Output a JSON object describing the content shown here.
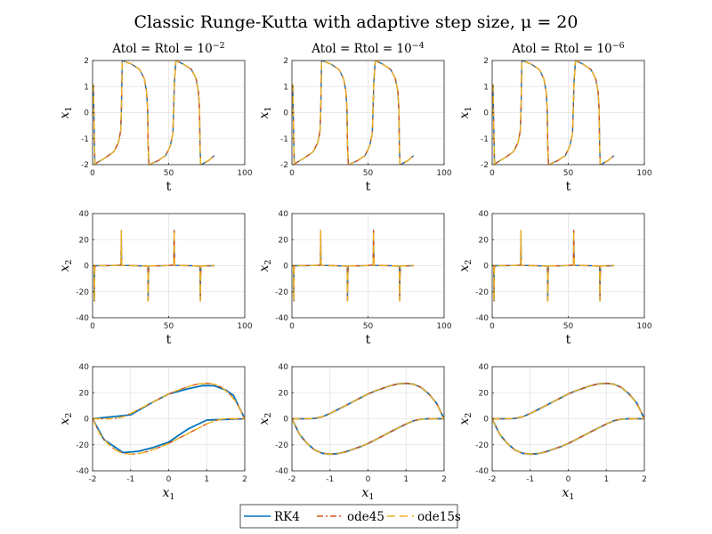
{
  "figure": {
    "title": "Classic Runge-Kutta with adaptive step size, μ = 20",
    "legend": {
      "placement": "bottom-center",
      "entries": [
        {
          "label": "RK4",
          "color": "#0072BD",
          "style": "solid"
        },
        {
          "label": "ode45",
          "color": "#D95319",
          "style": "dash-dot"
        },
        {
          "label": "ode15s",
          "color": "#EDB120",
          "style": "dashed"
        }
      ]
    }
  },
  "chart_data": [
    {
      "type": "line",
      "row": 0,
      "col": 0,
      "title": "Atol = Rtol = 10",
      "title_exp": "−2",
      "xlabel": "t",
      "ylabel": "x",
      "ylabel_sub": "1",
      "xlim": [
        0,
        100
      ],
      "ylim": [
        -2,
        2
      ],
      "xticks": [
        0,
        50,
        100
      ],
      "yticks": [
        -2,
        -1,
        0,
        1,
        2
      ],
      "grid": true,
      "series_names": [
        "RK4",
        "ode45",
        "ode15s"
      ]
    },
    {
      "type": "line",
      "row": 0,
      "col": 1,
      "title": "Atol = Rtol = 10",
      "title_exp": "−4",
      "xlabel": "t",
      "ylabel": "x",
      "ylabel_sub": "1",
      "xlim": [
        0,
        100
      ],
      "ylim": [
        -2,
        2
      ],
      "xticks": [
        0,
        50,
        100
      ],
      "yticks": [
        -2,
        -1,
        0,
        1,
        2
      ],
      "grid": true,
      "series_names": [
        "RK4",
        "ode45",
        "ode15s"
      ]
    },
    {
      "type": "line",
      "row": 0,
      "col": 2,
      "title": "Atol = Rtol = 10",
      "title_exp": "−6",
      "xlabel": "t",
      "ylabel": "x",
      "ylabel_sub": "1",
      "xlim": [
        0,
        100
      ],
      "ylim": [
        -2,
        2
      ],
      "xticks": [
        0,
        50,
        100
      ],
      "yticks": [
        -2,
        -1,
        0,
        1,
        2
      ],
      "grid": true,
      "series_names": [
        "RK4",
        "ode45",
        "ode15s"
      ]
    },
    {
      "type": "line",
      "row": 1,
      "col": 0,
      "title": "",
      "xlabel": "t",
      "ylabel": "x",
      "ylabel_sub": "2",
      "xlim": [
        0,
        100
      ],
      "ylim": [
        -40,
        40
      ],
      "xticks": [
        0,
        50,
        100
      ],
      "yticks": [
        -40,
        -20,
        0,
        20,
        40
      ],
      "grid": true,
      "series_names": [
        "RK4",
        "ode45",
        "ode15s"
      ]
    },
    {
      "type": "line",
      "row": 1,
      "col": 1,
      "title": "",
      "xlabel": "t",
      "ylabel": "x",
      "ylabel_sub": "2",
      "xlim": [
        0,
        100
      ],
      "ylim": [
        -40,
        40
      ],
      "xticks": [
        0,
        50,
        100
      ],
      "yticks": [
        -40,
        -20,
        0,
        20,
        40
      ],
      "grid": true,
      "series_names": [
        "RK4",
        "ode45",
        "ode15s"
      ]
    },
    {
      "type": "line",
      "row": 1,
      "col": 2,
      "title": "",
      "xlabel": "t",
      "ylabel": "x",
      "ylabel_sub": "2",
      "xlim": [
        0,
        100
      ],
      "ylim": [
        -40,
        40
      ],
      "xticks": [
        0,
        50,
        100
      ],
      "yticks": [
        -40,
        -20,
        0,
        20,
        40
      ],
      "grid": true,
      "series_names": [
        "RK4",
        "ode45",
        "ode15s"
      ]
    },
    {
      "type": "line",
      "row": 2,
      "col": 0,
      "title": "",
      "xlabel": "x",
      "xlabel_sub": "1",
      "ylabel": "x",
      "ylabel_sub": "2",
      "xlim": [
        -2,
        2
      ],
      "ylim": [
        -40,
        40
      ],
      "xticks": [
        -2,
        -1,
        0,
        1,
        2
      ],
      "yticks": [
        -40,
        -20,
        0,
        20,
        40
      ],
      "grid": true,
      "series_names": [
        "RK4",
        "ode45",
        "ode15s"
      ]
    },
    {
      "type": "line",
      "row": 2,
      "col": 1,
      "title": "",
      "xlabel": "x",
      "xlabel_sub": "1",
      "ylabel": "x",
      "ylabel_sub": "2",
      "xlim": [
        -2,
        2
      ],
      "ylim": [
        -40,
        40
      ],
      "xticks": [
        -2,
        -1,
        0,
        1,
        2
      ],
      "yticks": [
        -40,
        -20,
        0,
        20,
        40
      ],
      "grid": true,
      "series_names": [
        "RK4",
        "ode45",
        "ode15s"
      ]
    },
    {
      "type": "line",
      "row": 2,
      "col": 2,
      "title": "",
      "xlabel": "x",
      "xlabel_sub": "1",
      "ylabel": "x",
      "ylabel_sub": "2",
      "xlim": [
        -2,
        2
      ],
      "ylim": [
        -40,
        40
      ],
      "xticks": [
        -2,
        -1,
        0,
        1,
        2
      ],
      "yticks": [
        -40,
        -20,
        0,
        20,
        40
      ],
      "grid": true,
      "series_names": [
        "RK4",
        "ode45",
        "ode15s"
      ]
    }
  ],
  "series_data": {
    "time_x1": {
      "t": [
        0,
        0.5,
        1.5,
        3,
        8,
        14,
        17,
        18.5,
        19,
        19.5,
        20.5,
        26,
        31,
        34,
        35.5,
        36.2,
        36.5,
        37,
        38,
        43,
        48,
        51,
        52.8,
        53.3,
        53.8,
        54.8,
        60,
        65,
        68,
        69.6,
        70.3,
        70.6,
        71,
        72,
        76,
        80
      ],
      "x1": [
        1.1,
        1.05,
        -2,
        -1.92,
        -1.75,
        -1.5,
        -1.15,
        -0.7,
        0.2,
        2,
        1.98,
        1.85,
        1.65,
        1.3,
        0.8,
        0.1,
        -1.2,
        -2,
        -1.98,
        -1.85,
        -1.65,
        -1.3,
        -0.8,
        0.1,
        1.2,
        2,
        1.85,
        1.65,
        1.3,
        0.8,
        0.1,
        -1.2,
        -2,
        -1.98,
        -1.85,
        -1.65
      ]
    },
    "time_x2": {
      "t": [
        0,
        1.0,
        1.2,
        1.4,
        1.8,
        10,
        18.7,
        18.9,
        19.0,
        19.2,
        19.5,
        30,
        36.3,
        36.5,
        36.7,
        36.9,
        37.2,
        48,
        53.4,
        53.6,
        53.8,
        54.0,
        54.3,
        65,
        70.6,
        70.8,
        71.0,
        71.2,
        71.5,
        80
      ],
      "x2": [
        0,
        0,
        -27,
        -2,
        0,
        0.1,
        0.4,
        27,
        10,
        1,
        0.2,
        -0.1,
        -0.4,
        -27,
        -10,
        -1,
        -0.2,
        0.1,
        0.4,
        27,
        10,
        1,
        0.2,
        -0.1,
        -0.4,
        -27,
        -10,
        -1,
        -0.2,
        0
      ]
    },
    "phase_smooth": {
      "x1": [
        -2,
        -1.8,
        -1.6,
        -1.4,
        -1.2,
        -1.0,
        -0.8,
        -0.6,
        -0.4,
        -0.2,
        0,
        0.2,
        0.4,
        0.6,
        0.8,
        1.0,
        1.2,
        1.4,
        1.6,
        1.8,
        2.0
      ],
      "x2_upper": [
        0,
        0,
        0,
        0.3,
        1.5,
        4,
        7,
        10,
        13,
        16,
        19,
        21.5,
        23.5,
        25.5,
        26.8,
        27.2,
        26.5,
        24,
        19,
        12,
        0
      ],
      "x2_lower": [
        0,
        -12,
        -19,
        -24,
        -26.5,
        -27.2,
        -26.8,
        -25.5,
        -23.5,
        -21.5,
        -19,
        -16,
        -13,
        -10,
        -7,
        -4,
        -1.5,
        -0.3,
        0,
        0,
        0
      ]
    },
    "phase_rk4_coarse": {
      "x1_upper": [
        -2,
        -1.0,
        -0.4,
        0,
        0.5,
        0.9,
        1.2,
        1.5,
        1.7,
        2.0
      ],
      "x2_upper": [
        0,
        3,
        13,
        19,
        23,
        25.5,
        25.3,
        22,
        18,
        0
      ],
      "x1_lower": [
        -2,
        -1.7,
        -1.2,
        -0.8,
        -0.4,
        0,
        0.5,
        1.0,
        2.0
      ],
      "x2_lower": [
        0,
        -16,
        -26,
        -25,
        -22,
        -18,
        -8,
        -1,
        0
      ]
    }
  }
}
